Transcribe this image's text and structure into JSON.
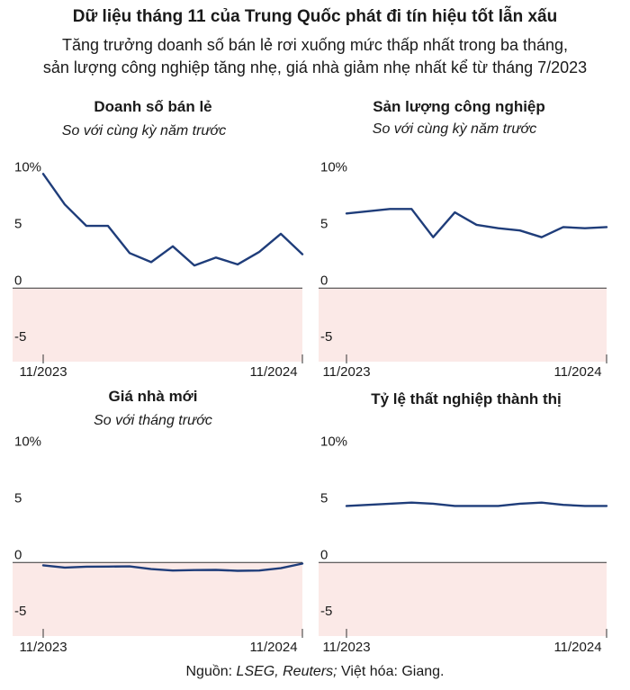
{
  "header": {
    "title": "Dữ liệu tháng 11 của Trung Quốc phát đi tín hiệu tốt lẫn xấu",
    "subtitle_line1": "Tăng trưởng doanh số bán lẻ rơi xuống mức thấp nhất trong ba tháng,",
    "subtitle_line2": "sản lượng công nghiệp tăng nhẹ, giá nhà giảm nhẹ nhất kể từ tháng 7/2023"
  },
  "footer": {
    "source_prefix": "Nguồn: ",
    "source_names": "LSEG, Reuters;",
    "source_suffix": " Việt hóa: Giang."
  },
  "colors": {
    "line": "#1f3d7a",
    "negative_band": "#fbe9e7",
    "zero_line": "#333333"
  },
  "chart_data": [
    {
      "type": "line",
      "title": "Doanh số bán lẻ",
      "subtitle": "So với cùng kỳ năm trước",
      "x": [
        "11/2023",
        "12/2023",
        "1/2024",
        "2/2024",
        "3/2024",
        "4/2024",
        "5/2024",
        "6/2024",
        "7/2024",
        "8/2024",
        "9/2024",
        "10/2024",
        "11/2024"
      ],
      "x_tick_labels": [
        "11/2023",
        "11/2024"
      ],
      "y_tick_labels": [
        "10%",
        "5",
        "0",
        "-5"
      ],
      "y_ticks": [
        10,
        5,
        0,
        -5
      ],
      "ylim": [
        -6.5,
        11
      ],
      "series": [
        {
          "values": [
            10.1,
            7.4,
            5.5,
            5.5,
            3.1,
            2.3,
            3.7,
            2.0,
            2.7,
            2.1,
            3.2,
            4.8,
            3.0
          ]
        }
      ],
      "negative_shaded": true
    },
    {
      "type": "line",
      "title": "Sản lượng công nghiệp",
      "subtitle": "So với cùng kỳ năm trước",
      "x": [
        "11/2023",
        "12/2023",
        "1/2024",
        "2/2024",
        "3/2024",
        "4/2024",
        "5/2024",
        "6/2024",
        "7/2024",
        "8/2024",
        "9/2024",
        "10/2024",
        "11/2024"
      ],
      "x_tick_labels": [
        "11/2023",
        "11/2024"
      ],
      "y_tick_labels": [
        "10%",
        "5",
        "0",
        "-5"
      ],
      "y_ticks": [
        10,
        5,
        0,
        -5
      ],
      "ylim": [
        -6.5,
        11
      ],
      "series": [
        {
          "values": [
            6.6,
            6.8,
            7.0,
            7.0,
            4.5,
            6.7,
            5.6,
            5.3,
            5.1,
            4.5,
            5.4,
            5.3,
            5.4
          ]
        }
      ],
      "negative_shaded": true
    },
    {
      "type": "line",
      "title": "Giá nhà mới",
      "subtitle": "So với tháng trước",
      "x": [
        "11/2023",
        "12/2023",
        "1/2024",
        "2/2024",
        "3/2024",
        "4/2024",
        "5/2024",
        "6/2024",
        "7/2024",
        "8/2024",
        "9/2024",
        "10/2024",
        "11/2024"
      ],
      "x_tick_labels": [
        "11/2023",
        "11/2024"
      ],
      "y_tick_labels": [
        "10%",
        "5",
        "0",
        "-5"
      ],
      "y_ticks": [
        10,
        5,
        0,
        -5
      ],
      "ylim": [
        -6.5,
        11
      ],
      "series": [
        {
          "values": [
            -0.25,
            -0.45,
            -0.37,
            -0.36,
            -0.34,
            -0.58,
            -0.71,
            -0.67,
            -0.65,
            -0.73,
            -0.71,
            -0.5,
            -0.1
          ]
        }
      ],
      "negative_shaded": true
    },
    {
      "type": "line",
      "title": "Tỷ lệ thất nghiệp thành thị",
      "subtitle": "",
      "x": [
        "11/2023",
        "12/2023",
        "1/2024",
        "2/2024",
        "3/2024",
        "4/2024",
        "5/2024",
        "6/2024",
        "7/2024",
        "8/2024",
        "9/2024",
        "10/2024",
        "11/2024"
      ],
      "x_tick_labels": [
        "11/2023",
        "11/2024"
      ],
      "y_tick_labels": [
        "10%",
        "5",
        "0",
        "-5"
      ],
      "y_ticks": [
        10,
        5,
        0,
        -5
      ],
      "ylim": [
        -6.5,
        11
      ],
      "series": [
        {
          "values": [
            5.0,
            5.1,
            5.2,
            5.3,
            5.2,
            5.0,
            5.0,
            5.0,
            5.2,
            5.3,
            5.1,
            5.0,
            5.0
          ]
        }
      ],
      "negative_shaded": true
    }
  ]
}
